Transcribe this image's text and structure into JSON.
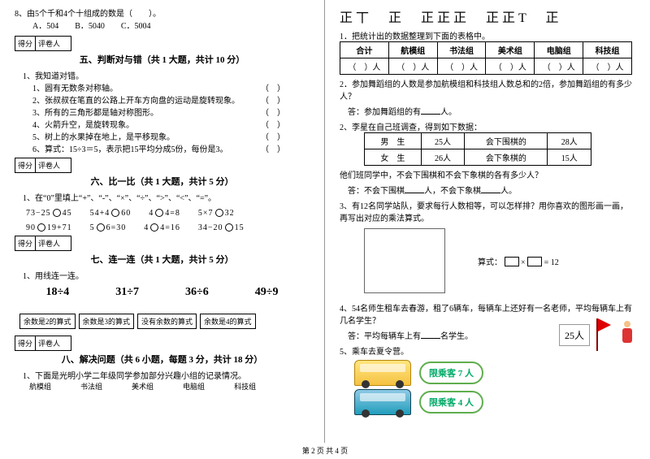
{
  "left": {
    "q8": {
      "text": "8、由5个千和4个十组成的数是（　　）。",
      "opts": "A．504　　B．5040　　C．5004"
    },
    "score": {
      "a": "得分",
      "b": "评卷人"
    },
    "sec5": {
      "title": "五、判断对与错（共 1 大题，共计 10 分）",
      "lead": "1、我知道对错。",
      "items": [
        "1、圆有无数条对称轴。",
        "2、张叔叔在笔直的公路上开车方向盘的运动是旋转现象。",
        "3、所有的三角形都是轴对称图形。",
        "4、火箭升空，是旋转现象。",
        "5、树上的水果掉在地上，是平移现象。",
        "6、算式：15÷3＝5，表示把15平均分成5份，每份是3。"
      ]
    },
    "sec6": {
      "title": "六、比一比（共 1 大题，共计 5 分）",
      "lead": "1、在“0”里填上“+”、“-”、“×”、“÷”、“>”、“<”、“=”。",
      "row1": "73−25◯45　　54+4◯60　　4◯4=8　　5×7◯32",
      "row2": "90◯19+71　　5◯6=30　　4◯4=16　　34−20◯15"
    },
    "sec7": {
      "title": "七、连一连（共 1 大题，共计 5 分）",
      "lead": "1、用线连一连。",
      "exprs": [
        "18÷4",
        "31÷7",
        "36÷6",
        "49÷9"
      ],
      "rems": [
        "余数是2的算式",
        "余数是3的算式",
        "没有余数的算式",
        "余数是4的算式"
      ]
    },
    "sec8": {
      "title": "八、解决问题（共 6 小题，每题 3 分，共计 18 分）",
      "lead": "1、下面是光明小学二年级同学参加部分兴趣小组的记录情况。",
      "groups": [
        "航模组",
        "书法组",
        "美术组",
        "电脑组",
        "科技组"
      ]
    }
  },
  "right": {
    "tally": "正丅　正　正正正　正正T　正",
    "q1": "1．把统计出的数据整理到下面的表格中。",
    "tbl1": {
      "h": [
        "合计",
        "航模组",
        "书法组",
        "美术组",
        "电脑组",
        "科技组"
      ],
      "unit": "（　）人"
    },
    "q2": "2．参加舞蹈组的人数是参加航模组和科技组人数总和的2倍，参加舞蹈组的有多少人？",
    "a2": "答：参加舞蹈组的有____人。",
    "q2b": "2、李星在自己班调查，得到如下数据：",
    "tbl2": {
      "r1": [
        "男　生",
        "25人",
        "会下围棋的",
        "28人"
      ],
      "r2": [
        "女　生",
        "26人",
        "会下象棋的",
        "15人"
      ]
    },
    "q2bq": "他们班同学中，不会下围棋和不会下象棋的各有多少人？",
    "a2b": "答：不会下围棋____人，不会下象棋____人。",
    "q3": "3、有12名同学站队，要求每行人数相等，可以怎样排？用你喜欢的图形画一画，再写出对应的乘法算式。",
    "formula": {
      "label": "算式：",
      "eq": " × ",
      "res": " = 12"
    },
    "q4": "4、54名师生租车去春游，租了6辆车，每辆车上还好有一名老师，平均每辆车上有几名学生？",
    "a4": "答：平均每辆车上有____名学生。",
    "q5": "5、乘车去夏令营。",
    "bus1": "限乘客 7 人",
    "bus2": "限乘客 4 人",
    "people": "25人"
  },
  "footer": "第 2 页 共 4 页"
}
